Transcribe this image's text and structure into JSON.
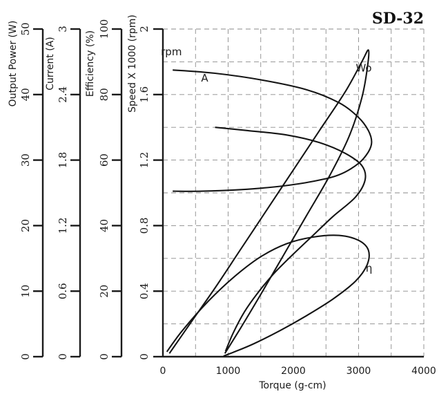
{
  "chart_data": {
    "type": "line",
    "title": "SD-32",
    "xlabel": "Torque (g-cm)",
    "xlim": [
      0,
      4000
    ],
    "x_ticks": [
      "0",
      "1000",
      "2000",
      "3000",
      "4000"
    ],
    "grid": true,
    "y_axes": [
      {
        "key": "power",
        "label": "Output Power (W)",
        "range": [
          0,
          50
        ],
        "ticks": [
          "0",
          "10",
          "20",
          "30",
          "40",
          "50"
        ]
      },
      {
        "key": "current",
        "label": "Current (A)",
        "range": [
          0,
          3
        ],
        "ticks": [
          "0",
          "0.6",
          "1.2",
          "1.8",
          "2.4",
          "3"
        ]
      },
      {
        "key": "efficiency",
        "label": "Efficiency (%)",
        "range": [
          0,
          100
        ],
        "ticks": [
          "0",
          "20",
          "40",
          "60",
          "80",
          "100"
        ]
      },
      {
        "key": "speed",
        "label": "Speed X 1000 (rpm)",
        "range": [
          0,
          2
        ],
        "ticks": [
          "0",
          "0.4",
          "0.8",
          "1.2",
          "1.6",
          "2"
        ]
      }
    ],
    "series": [
      {
        "name": "rpm",
        "axis": "speed",
        "points": [
          [
            150,
            1.75
          ],
          [
            800,
            1.73
          ],
          [
            1500,
            1.69
          ],
          [
            2200,
            1.63
          ],
          [
            2700,
            1.55
          ],
          [
            3000,
            1.46
          ],
          [
            3150,
            1.38
          ],
          [
            3200,
            1.31
          ],
          [
            3150,
            1.25
          ],
          [
            3000,
            1.18
          ],
          [
            2700,
            1.11
          ],
          [
            2300,
            1.07
          ],
          [
            1800,
            1.04
          ],
          [
            1200,
            1.02
          ],
          [
            600,
            1.01
          ],
          [
            150,
            1.01
          ]
        ]
      },
      {
        "name": "A",
        "axis": "current",
        "points": [
          [
            800,
            2.1
          ],
          [
            1300,
            2.07
          ],
          [
            1900,
            2.03
          ],
          [
            2400,
            1.96
          ],
          [
            2800,
            1.86
          ],
          [
            3050,
            1.75
          ],
          [
            3100,
            1.62
          ],
          [
            2950,
            1.46
          ],
          [
            2600,
            1.28
          ],
          [
            2300,
            1.11
          ],
          [
            2000,
            0.94
          ],
          [
            1700,
            0.76
          ],
          [
            1450,
            0.58
          ],
          [
            1250,
            0.41
          ],
          [
            1080,
            0.22
          ],
          [
            960,
            0.05
          ]
        ]
      },
      {
        "name": "Wo",
        "axis": "power",
        "points": [
          [
            100,
            0.5
          ],
          [
            400,
            4.8
          ],
          [
            800,
            10.5
          ],
          [
            1200,
            16.5
          ],
          [
            1600,
            22.5
          ],
          [
            2000,
            28.5
          ],
          [
            2400,
            34.5
          ],
          [
            2800,
            40.5
          ],
          [
            3050,
            45
          ],
          [
            3150,
            46.8
          ],
          [
            3140,
            44.5
          ],
          [
            3050,
            39.5
          ],
          [
            2850,
            33.5
          ],
          [
            2550,
            27.5
          ],
          [
            2200,
            21.5
          ],
          [
            1850,
            15.5
          ],
          [
            1500,
            9.5
          ],
          [
            1200,
            4.5
          ],
          [
            950,
            0.5
          ]
        ]
      },
      {
        "name": "η",
        "axis": "efficiency",
        "points": [
          [
            60,
            1.5
          ],
          [
            300,
            8
          ],
          [
            700,
            17
          ],
          [
            1100,
            24.5
          ],
          [
            1500,
            30.5
          ],
          [
            1900,
            34.5
          ],
          [
            2300,
            36.5
          ],
          [
            2700,
            37
          ],
          [
            3000,
            35.5
          ],
          [
            3150,
            32.5
          ],
          [
            3130,
            28
          ],
          [
            2950,
            23
          ],
          [
            2600,
            17.5
          ],
          [
            2200,
            12.5
          ],
          [
            1800,
            8
          ],
          [
            1400,
            4
          ],
          [
            1100,
            1.5
          ],
          [
            930,
            0.2
          ]
        ]
      }
    ],
    "annotations": [
      {
        "text": "rpm",
        "x": 130,
        "y_axis": "speed",
        "y": 1.84
      },
      {
        "text": "A",
        "x": 640,
        "y_axis": "speed",
        "y": 1.68
      },
      {
        "text": "Wo",
        "x": 3080,
        "y_axis": "speed",
        "y": 1.74
      },
      {
        "text": "η",
        "x": 3160,
        "y_axis": "speed",
        "y": 0.52
      }
    ]
  }
}
